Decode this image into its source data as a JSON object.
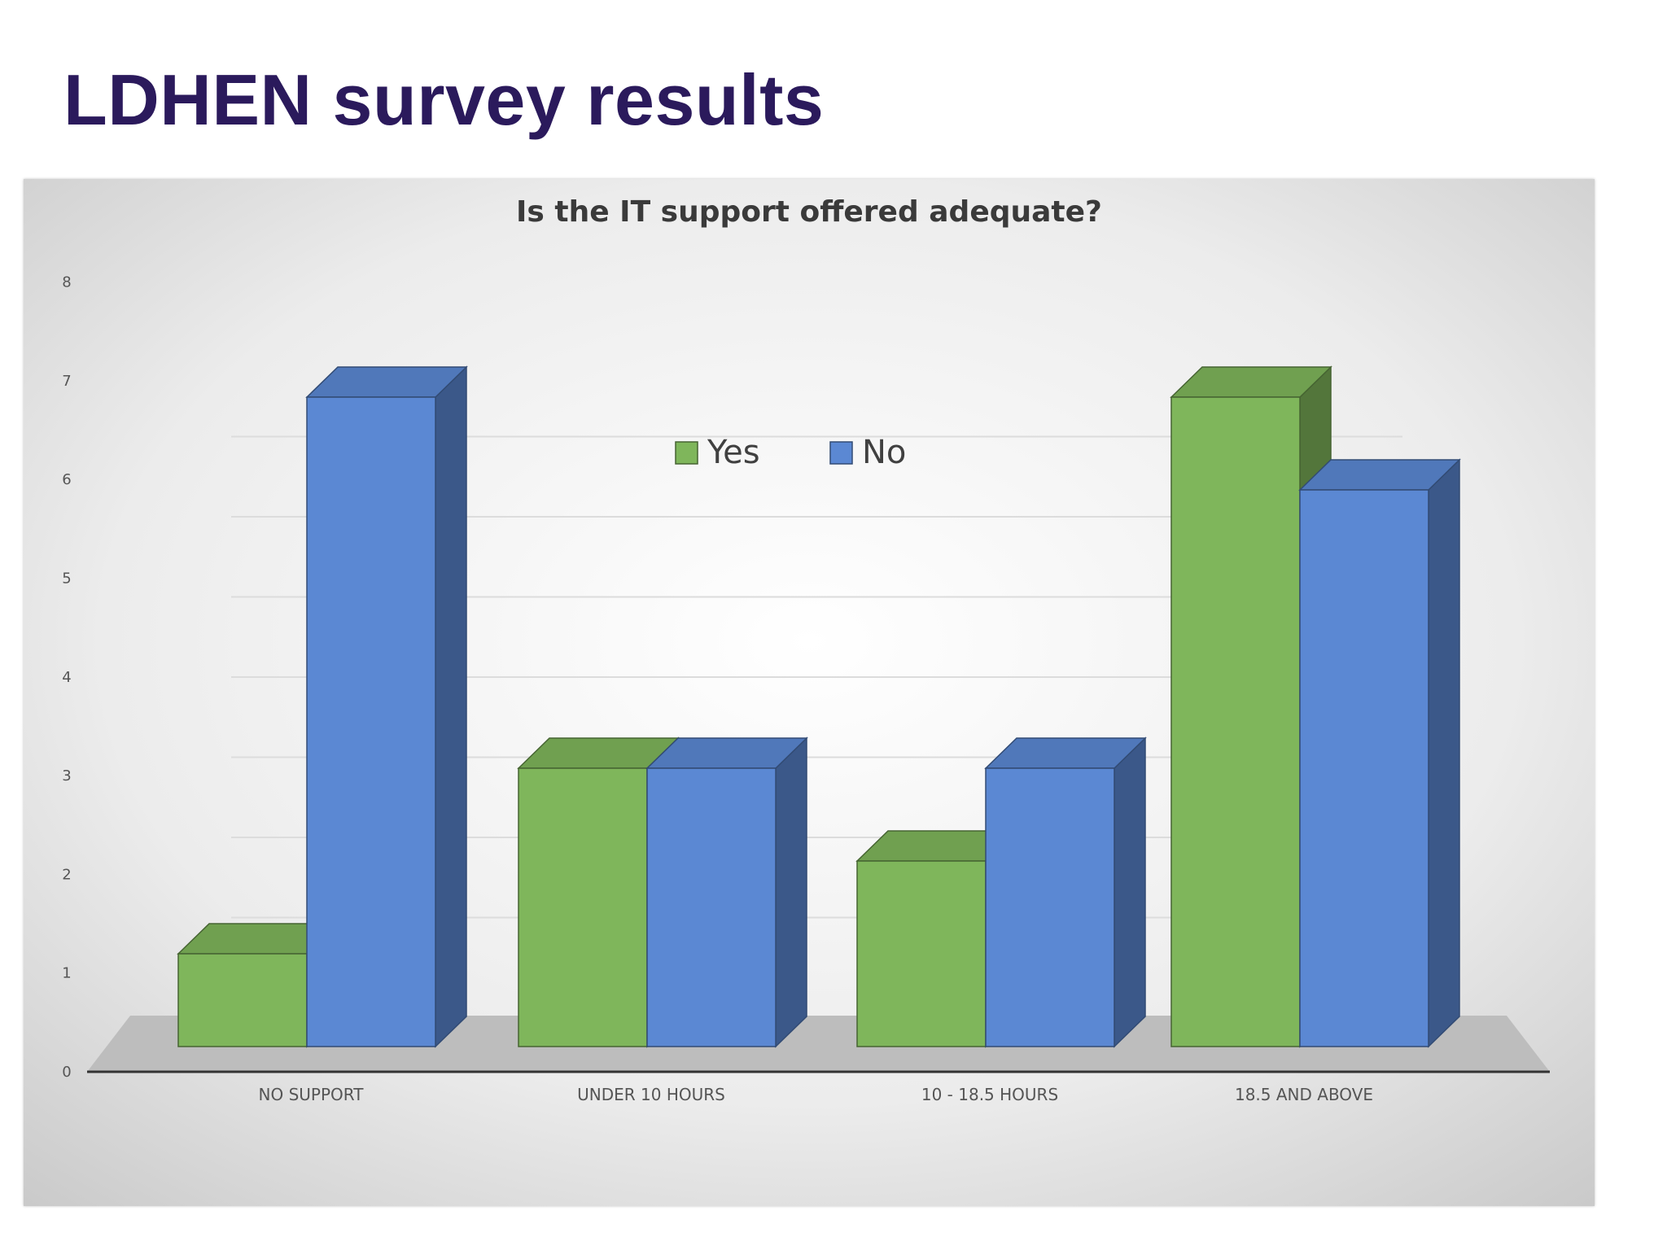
{
  "slide": {
    "title": "LDHEN survey results",
    "title_color": "#2b1a5c"
  },
  "chart_data": {
    "type": "bar",
    "title": "Is the IT support offered adequate?",
    "xlabel": "",
    "ylabel": "",
    "ylim": [
      0,
      8
    ],
    "yticks": [
      "0",
      "1",
      "2",
      "3",
      "4",
      "5",
      "6",
      "7",
      "8"
    ],
    "categories": [
      "NO SUPPORT",
      "UNDER 10 HOURS",
      "10 - 18.5 HOURS",
      "18.5 AND ABOVE"
    ],
    "series": [
      {
        "name": "Yes",
        "values": [
          1,
          3,
          2,
          7
        ],
        "color": "#7fb65b"
      },
      {
        "name": "No",
        "values": [
          7,
          3,
          3,
          6
        ],
        "color": "#5b88d3"
      }
    ],
    "legend": "top-center",
    "grid": true,
    "style": "3d clustered column"
  }
}
